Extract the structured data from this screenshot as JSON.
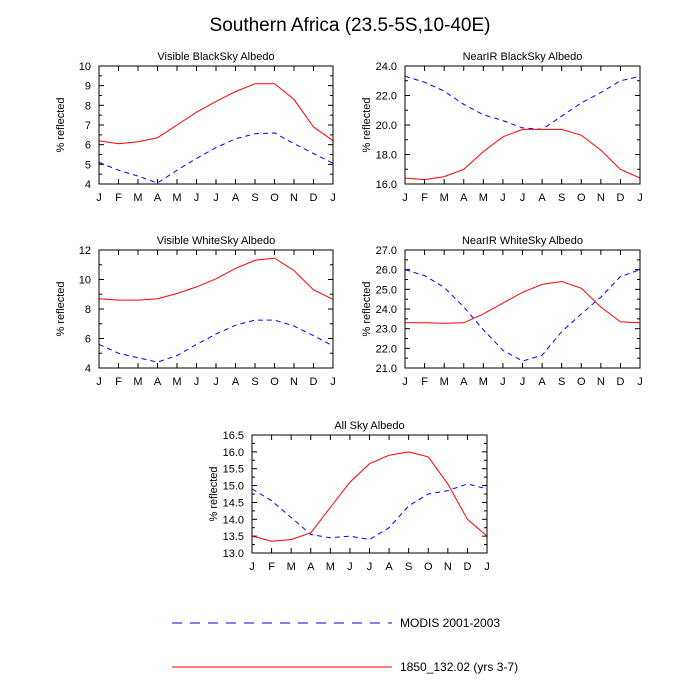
{
  "figure": {
    "title": "Southern Africa (23.5-5S,10-40E)"
  },
  "legend": {
    "entries": [
      {
        "label": "MODIS 2001-2003",
        "color": "#0000ff",
        "style": "dashed"
      },
      {
        "label": "1850_132.02 (yrs 3-7)",
        "color": "#ff0000",
        "style": "solid"
      }
    ]
  },
  "chart_data": [
    {
      "type": "line",
      "title": "Visible BlackSky Albedo",
      "ylabel": "% reflected",
      "xlabel": "",
      "categories": [
        "J",
        "F",
        "M",
        "A",
        "M",
        "J",
        "J",
        "A",
        "S",
        "O",
        "N",
        "D",
        "J"
      ],
      "ylim": [
        4,
        10
      ],
      "yticks": [
        4,
        5,
        6,
        7,
        8,
        9,
        10
      ],
      "ytick_labels": [
        "4",
        "5",
        "6",
        "7",
        "8",
        "9",
        "10"
      ],
      "series": [
        {
          "name": "MODIS 2001-2003",
          "color": "#0000ff",
          "style": "dashed",
          "values": [
            5.1,
            4.7,
            4.4,
            4.05,
            4.7,
            5.3,
            5.85,
            6.3,
            6.55,
            6.6,
            6.05,
            5.55,
            5.05
          ]
        },
        {
          "name": "1850_132.02 (yrs 3-7)",
          "color": "#ff0000",
          "style": "solid",
          "values": [
            6.2,
            6.05,
            6.15,
            6.35,
            7.0,
            7.65,
            8.2,
            8.7,
            9.1,
            9.1,
            8.3,
            6.9,
            6.2
          ]
        }
      ]
    },
    {
      "type": "line",
      "title": "NearIR BlackSky Albedo",
      "ylabel": "% reflected",
      "xlabel": "",
      "categories": [
        "J",
        "F",
        "M",
        "A",
        "M",
        "J",
        "J",
        "A",
        "S",
        "O",
        "N",
        "D",
        "J"
      ],
      "ylim": [
        16,
        24
      ],
      "yticks": [
        16,
        18,
        20,
        22,
        24
      ],
      "ytick_labels": [
        "16.0",
        "18.0",
        "20.0",
        "22.0",
        "24.0"
      ],
      "series": [
        {
          "name": "MODIS 2001-2003",
          "color": "#0000ff",
          "style": "dashed",
          "values": [
            23.3,
            22.9,
            22.3,
            21.4,
            20.7,
            20.3,
            19.8,
            19.7,
            20.6,
            21.5,
            22.2,
            23.0,
            23.3
          ]
        },
        {
          "name": "1850_132.02 (yrs 3-7)",
          "color": "#ff0000",
          "style": "solid",
          "values": [
            16.4,
            16.3,
            16.5,
            17.0,
            18.2,
            19.2,
            19.7,
            19.7,
            19.7,
            19.3,
            18.3,
            17.0,
            16.4
          ]
        }
      ]
    },
    {
      "type": "line",
      "title": "Visible WhiteSky Albedo",
      "ylabel": "% reflected",
      "xlabel": "",
      "categories": [
        "J",
        "F",
        "M",
        "A",
        "M",
        "J",
        "J",
        "A",
        "S",
        "O",
        "N",
        "D",
        "J"
      ],
      "ylim": [
        4,
        12
      ],
      "yticks": [
        4,
        6,
        8,
        10,
        12
      ],
      "ytick_labels": [
        "4",
        "6",
        "8",
        "10",
        "12"
      ],
      "series": [
        {
          "name": "MODIS 2001-2003",
          "color": "#0000ff",
          "style": "dashed",
          "values": [
            5.6,
            5.0,
            4.7,
            4.4,
            4.85,
            5.6,
            6.3,
            6.9,
            7.25,
            7.25,
            6.85,
            6.2,
            5.5
          ]
        },
        {
          "name": "1850_132.02 (yrs 3-7)",
          "color": "#ff0000",
          "style": "solid",
          "values": [
            8.7,
            8.6,
            8.6,
            8.7,
            9.05,
            9.5,
            10.05,
            10.75,
            11.3,
            11.45,
            10.6,
            9.3,
            8.65
          ]
        }
      ]
    },
    {
      "type": "line",
      "title": "NearIR WhiteSky Albedo",
      "ylabel": "% reflected",
      "xlabel": "",
      "categories": [
        "J",
        "F",
        "M",
        "A",
        "M",
        "J",
        "J",
        "A",
        "S",
        "O",
        "N",
        "D",
        "J"
      ],
      "ylim": [
        21,
        27
      ],
      "yticks": [
        21,
        22,
        23,
        24,
        25,
        26,
        27
      ],
      "ytick_labels": [
        "21.0",
        "22.0",
        "23.0",
        "24.0",
        "25.0",
        "26.0",
        "27.0"
      ],
      "series": [
        {
          "name": "MODIS 2001-2003",
          "color": "#0000ff",
          "style": "dashed",
          "values": [
            26.0,
            25.7,
            25.1,
            24.1,
            22.95,
            21.9,
            21.35,
            21.65,
            22.85,
            23.75,
            24.6,
            25.65,
            26.0
          ]
        },
        {
          "name": "1850_132.02 (yrs 3-7)",
          "color": "#ff0000",
          "style": "solid",
          "values": [
            23.3,
            23.3,
            23.28,
            23.3,
            23.75,
            24.3,
            24.85,
            25.25,
            25.4,
            25.05,
            24.1,
            23.35,
            23.3
          ]
        }
      ]
    },
    {
      "type": "line",
      "title": "All Sky Albedo",
      "ylabel": "% reflected",
      "xlabel": "",
      "categories": [
        "J",
        "F",
        "M",
        "A",
        "M",
        "J",
        "J",
        "A",
        "S",
        "O",
        "N",
        "D",
        "J"
      ],
      "ylim": [
        13,
        16.5
      ],
      "yticks": [
        13,
        13.5,
        14,
        14.5,
        15,
        15.5,
        16,
        16.5
      ],
      "ytick_labels": [
        "13.0",
        "13.5",
        "14.0",
        "14.5",
        "15.0",
        "15.5",
        "16.0",
        "16.5"
      ],
      "series": [
        {
          "name": "MODIS 2001-2003",
          "color": "#0000ff",
          "style": "dashed",
          "values": [
            14.9,
            14.55,
            14.05,
            13.55,
            13.45,
            13.5,
            13.4,
            13.75,
            14.4,
            14.75,
            14.85,
            15.05,
            14.9
          ]
        },
        {
          "name": "1850_132.02 (yrs 3-7)",
          "color": "#ff0000",
          "style": "solid",
          "values": [
            13.5,
            13.35,
            13.4,
            13.6,
            14.35,
            15.1,
            15.65,
            15.9,
            16.0,
            15.85,
            15.05,
            14.0,
            13.5
          ]
        }
      ]
    }
  ]
}
